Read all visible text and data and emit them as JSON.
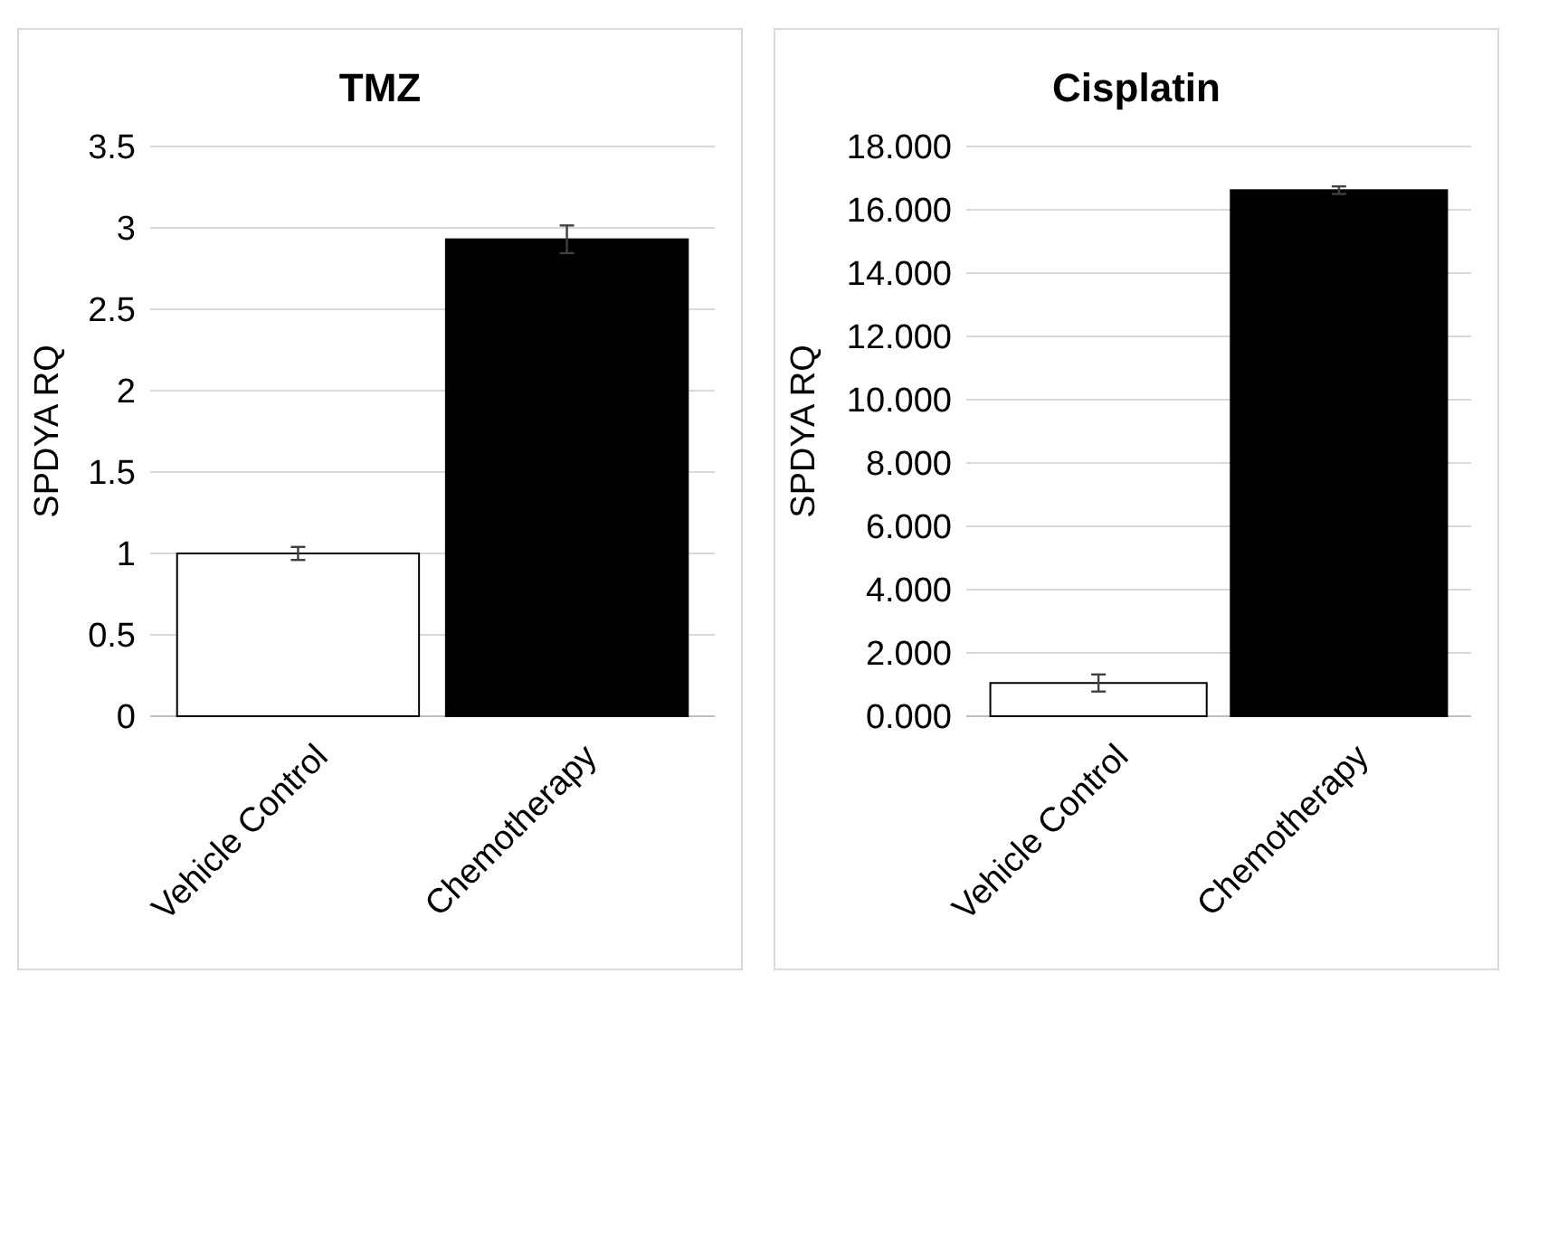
{
  "chart_data": [
    {
      "type": "bar",
      "title": "TMZ",
      "ylabel": "SPDYA RQ",
      "categories": [
        "Vehicle Control",
        "Chemotherapy"
      ],
      "values": [
        1.0,
        2.93
      ],
      "colors": [
        "#ffffff",
        "#000000"
      ],
      "errors": [
        0.04,
        0.085
      ],
      "ylim": [
        0,
        3.5
      ],
      "yticks": [
        0,
        0.5,
        1,
        1.5,
        2,
        2.5,
        3,
        3.5
      ],
      "grid": "y"
    },
    {
      "type": "bar",
      "title": "Cisplatin",
      "ylabel": "SPDYA RQ",
      "categories": [
        "Vehicle Control",
        "Chemotherapy"
      ],
      "values": [
        1.05,
        16.62
      ],
      "colors": [
        "#ffffff",
        "#000000"
      ],
      "errors": [
        0.27,
        0.12
      ],
      "ylim": [
        0,
        18
      ],
      "yticks": [
        {
          "value": 0,
          "label": "0.000"
        },
        {
          "value": 2,
          "label": "2.000"
        },
        {
          "value": 4,
          "label": "4.000"
        },
        {
          "value": 6,
          "label": "6.000"
        },
        {
          "value": 8,
          "label": "8.000"
        },
        {
          "value": 10,
          "label": "10.000"
        },
        {
          "value": 12,
          "label": "12.000"
        },
        {
          "value": 14,
          "label": "14.000"
        },
        {
          "value": 16,
          "label": "16.000"
        },
        {
          "value": 18,
          "label": "18.000"
        }
      ],
      "grid": "y"
    }
  ]
}
